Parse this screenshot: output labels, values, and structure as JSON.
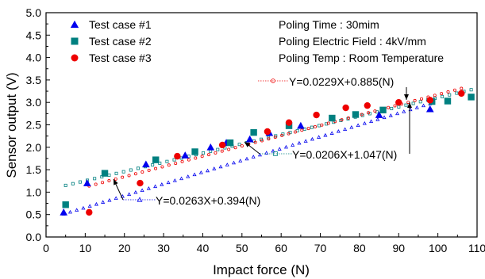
{
  "chart_data": {
    "type": "scatter",
    "xlabel": "Impact force (N)",
    "ylabel": "Sensor output (V)",
    "xlim": [
      0,
      110
    ],
    "ylim": [
      0,
      5.0
    ],
    "xticks": [
      "0",
      "10",
      "20",
      "30",
      "40",
      "50",
      "60",
      "70",
      "80",
      "90",
      "100",
      "110"
    ],
    "yticks": [
      "0.0",
      "0.5",
      "1.0",
      "1.5",
      "2.0",
      "2.5",
      "3.0",
      "3.5",
      "4.0",
      "4.5",
      "5.0"
    ],
    "grid": false,
    "legend_position": "top-left",
    "conditions": [
      "Poling Time : 30mim",
      "Poling Electric Field : 4kV/mm",
      "Poling Temp : Room Temperature"
    ],
    "series": [
      {
        "name": "Test case #1",
        "marker": "triangle",
        "color": "#0000ee",
        "x": [
          4.5,
          10.5,
          25.5,
          35.5,
          42,
          46,
          52,
          57,
          65,
          85,
          98
        ],
        "y": [
          0.55,
          1.2,
          1.62,
          1.82,
          2.0,
          2.1,
          2.18,
          2.32,
          2.48,
          2.72,
          2.85
        ],
        "fit": {
          "slope": 0.0263,
          "intercept": 0.394,
          "x_range": [
            4.5,
            98
          ],
          "label": "Y=0.0263X+0.394(N)"
        }
      },
      {
        "name": "Test case #2",
        "marker": "square",
        "color": "#008080",
        "x": [
          5,
          15,
          28,
          38,
          47,
          53,
          62,
          73,
          79,
          86,
          98.5,
          102.5,
          108.5
        ],
        "y": [
          0.72,
          1.42,
          1.72,
          1.9,
          2.1,
          2.33,
          2.48,
          2.65,
          2.73,
          2.83,
          3.02,
          3.03,
          3.12
        ],
        "fit": {
          "slope": 0.0206,
          "intercept": 1.047,
          "x_range": [
            5,
            108.5
          ],
          "label": "Y=0.0206X+1.047(N)"
        }
      },
      {
        "name": "Test case #3",
        "marker": "circle",
        "color": "#ee0000",
        "x": [
          11,
          24,
          33.5,
          45,
          56.5,
          62,
          69,
          76.5,
          82,
          90,
          98,
          106
        ],
        "y": [
          0.55,
          1.2,
          1.8,
          2.05,
          2.35,
          2.55,
          2.72,
          2.88,
          2.93,
          3.0,
          3.05,
          3.2
        ],
        "fit": {
          "slope": 0.0229,
          "intercept": 0.885,
          "x_range": [
            11,
            106
          ],
          "label": "Y=0.0229X+0.885(N)"
        }
      }
    ]
  }
}
